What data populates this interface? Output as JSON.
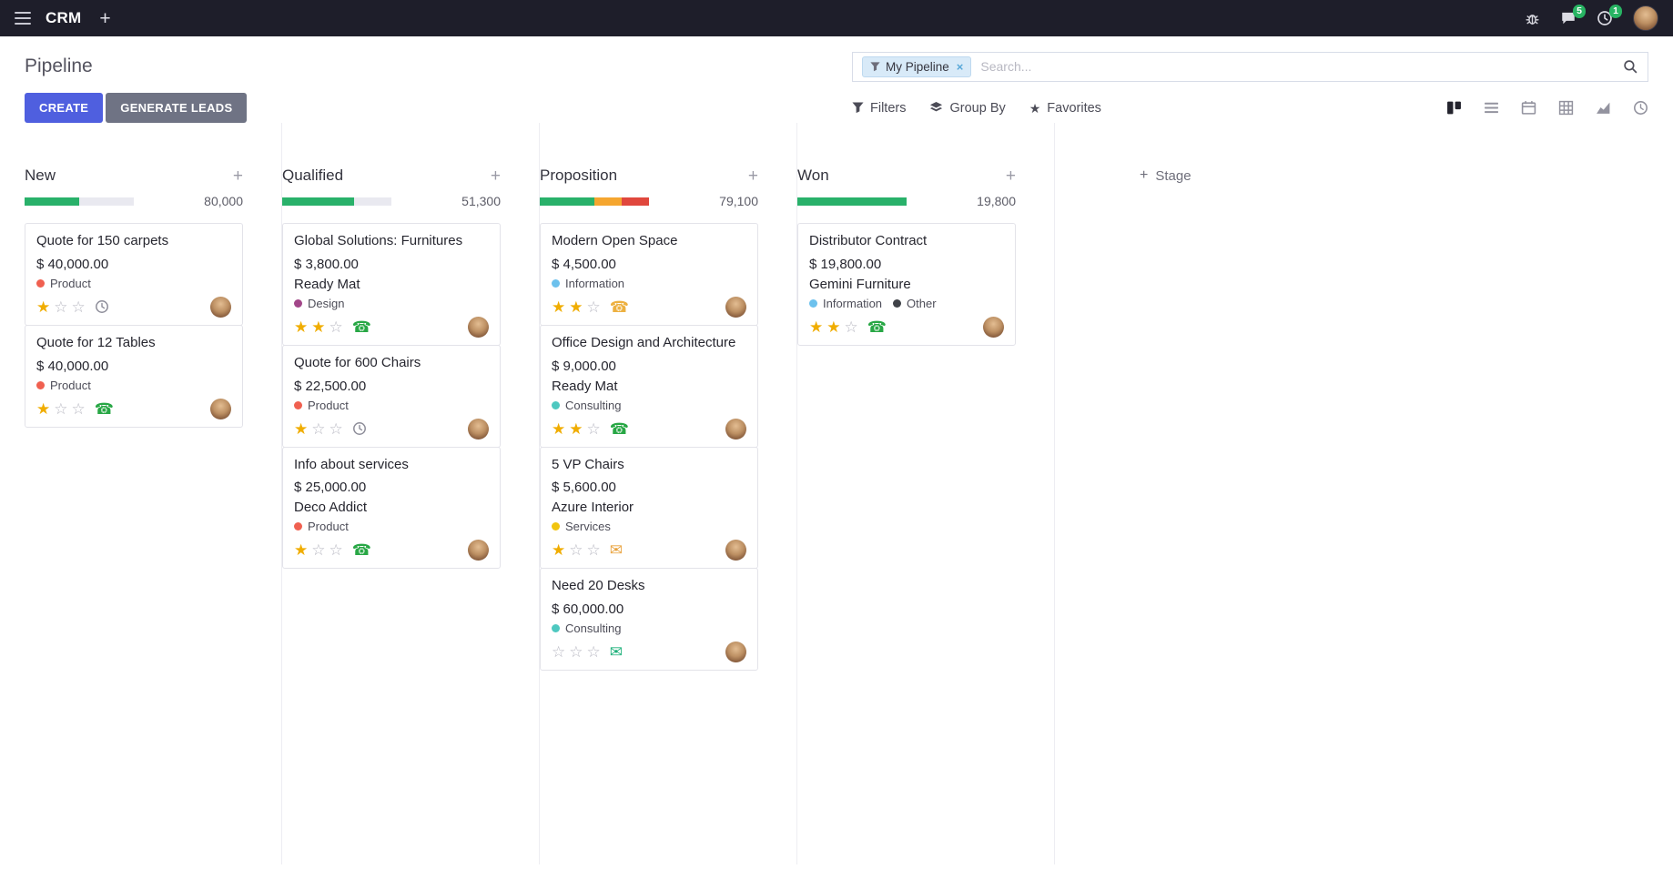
{
  "topbar": {
    "app": "CRM",
    "message_count": "5",
    "activity_count": "1"
  },
  "panel": {
    "title": "Pipeline",
    "create_label": "CREATE",
    "generate_leads_label": "GENERATE LEADS",
    "search_facet": "My Pipeline",
    "search_placeholder": "Search...",
    "filters_label": "Filters",
    "group_by_label": "Group By",
    "favorites_label": "Favorites",
    "add_stage_label": "Stage"
  },
  "view_switcher": {
    "active": "kanban",
    "views": [
      "kanban",
      "list",
      "calendar",
      "pivot",
      "graph",
      "activity"
    ]
  },
  "colors": {
    "primary_button": "#4f5fdf",
    "secondary_button": "#6f7384",
    "progress_green": "#29b16a",
    "progress_orange": "#f5a62f",
    "progress_red": "#e0473d",
    "badge_green": "#28b463"
  },
  "columns": [
    {
      "name": "New",
      "counter": "80,000",
      "progress": [
        {
          "color": "#29b16a",
          "pct": 50
        }
      ],
      "cards": [
        {
          "title": "Quote for 150 carpets",
          "amount": "$ 40,000.00",
          "tags": [
            {
              "label": "Product",
              "color": "#f06050"
            }
          ],
          "stars": 1,
          "activity": {
            "icon": "clock",
            "color": "#8d8d99"
          }
        },
        {
          "title": "Quote for 12 Tables",
          "amount": "$ 40,000.00",
          "tags": [
            {
              "label": "Product",
              "color": "#f06050"
            }
          ],
          "stars": 1,
          "activity": {
            "icon": "phone",
            "color": "#28a745"
          }
        }
      ]
    },
    {
      "name": "Qualified",
      "counter": "51,300",
      "progress": [
        {
          "color": "#29b16a",
          "pct": 66
        }
      ],
      "cards": [
        {
          "title": "Global Solutions: Furnitures",
          "amount": "$ 3,800.00",
          "partner": "Ready Mat",
          "tags": [
            {
              "label": "Design",
              "color": "#a24689"
            }
          ],
          "stars": 2,
          "activity": {
            "icon": "phone",
            "color": "#28a745"
          }
        },
        {
          "title": "Quote for 600 Chairs",
          "amount": "$ 22,500.00",
          "tags": [
            {
              "label": "Product",
              "color": "#f06050"
            }
          ],
          "stars": 1,
          "activity": {
            "icon": "clock",
            "color": "#8d8d99"
          }
        },
        {
          "title": "Info about services",
          "amount": "$ 25,000.00",
          "partner": "Deco Addict",
          "tags": [
            {
              "label": "Product",
              "color": "#f06050"
            }
          ],
          "stars": 1,
          "activity": {
            "icon": "phone",
            "color": "#28a745"
          }
        }
      ]
    },
    {
      "name": "Proposition",
      "counter": "79,100",
      "progress": [
        {
          "color": "#29b16a",
          "pct": 50
        },
        {
          "color": "#f5a62f",
          "pct": 25
        },
        {
          "color": "#e0473d",
          "pct": 25
        }
      ],
      "cards": [
        {
          "title": "Modern Open Space",
          "amount": "$ 4,500.00",
          "tags": [
            {
              "label": "Information",
              "color": "#6cc1ed"
            }
          ],
          "stars": 2,
          "activity": {
            "icon": "phone",
            "color": "#edb141"
          }
        },
        {
          "title": "Office Design and Architecture",
          "amount": "$ 9,000.00",
          "partner": "Ready Mat",
          "tags": [
            {
              "label": "Consulting",
              "color": "#4ec8c0"
            }
          ],
          "stars": 2,
          "activity": {
            "icon": "phone",
            "color": "#28a745"
          }
        },
        {
          "title": "5 VP Chairs",
          "amount": "$ 5,600.00",
          "partner": "Azure Interior",
          "tags": [
            {
              "label": "Services",
              "color": "#f1c40f"
            }
          ],
          "stars": 1,
          "activity": {
            "icon": "mail",
            "color": "#e9a23c"
          }
        },
        {
          "title": "Need 20 Desks",
          "amount": "$ 60,000.00",
          "tags": [
            {
              "label": "Consulting",
              "color": "#4ec8c0"
            }
          ],
          "stars": 0,
          "activity": {
            "icon": "mail",
            "color": "#1db07a"
          }
        }
      ]
    },
    {
      "name": "Won",
      "counter": "19,800",
      "progress": [
        {
          "color": "#29b16a",
          "pct": 100
        }
      ],
      "cards": [
        {
          "title": "Distributor Contract",
          "amount": "$ 19,800.00",
          "partner": "Gemini Furniture",
          "tags": [
            {
              "label": "Information",
              "color": "#6cc1ed"
            },
            {
              "label": "Other",
              "color": "#3f4248"
            }
          ],
          "stars": 2,
          "activity": {
            "icon": "phone",
            "color": "#28a745"
          }
        }
      ]
    }
  ]
}
